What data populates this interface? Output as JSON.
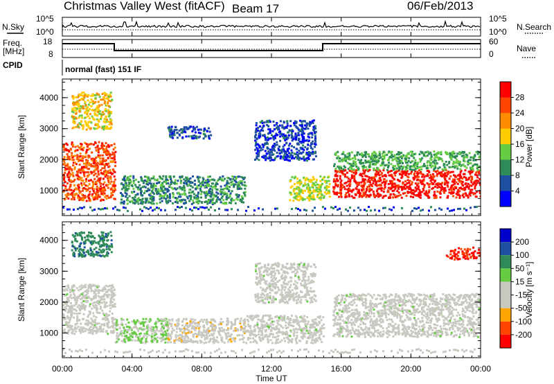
{
  "header": {
    "station": "Christmas Valley West (fitACF)",
    "beam": "Beam 17",
    "date": "06/Feb/2013"
  },
  "strip_labels": {
    "nsky": "N.Sky",
    "nsky_ticks": [
      "10^5",
      "10^0"
    ],
    "nsearch": "N.Search",
    "nsearch_ticks": [
      "10^5",
      "10^0"
    ],
    "freq_line1": "Freq.",
    "freq_line2": "[MHz]",
    "freq_ticks": [
      "18",
      "8"
    ],
    "nave": "Nave",
    "nave_ticks": [
      "60",
      "0"
    ],
    "cpid": "CPID",
    "cpid_value": "normal (fast) 151 IF"
  },
  "colors": {
    "power_scale": [
      "#0000ff",
      "#1e4fa0",
      "#2e8b57",
      "#66cc44",
      "#ffcc00",
      "#ff8c00",
      "#ff4500",
      "#ff0000"
    ],
    "velocity_scale": [
      "#ff0000",
      "#ff4500",
      "#ffa500",
      "#c8c8c0",
      "#c8c8c0",
      "#66cc44",
      "#2e8b57",
      "#1e4fa0",
      "#0000cc"
    ],
    "gray": "#c8c8c0"
  },
  "chart_data": [
    {
      "type": "heatmap",
      "name": "power",
      "ylabel": "Slant Range [km]",
      "yticks": [
        "1000",
        "2000",
        "3000",
        "4000"
      ],
      "ylim": [
        200,
        4600
      ],
      "colorbar_label": "Power [dB]",
      "colorbar_ticks": [
        "4",
        "8",
        "12",
        "16",
        "20",
        "24",
        "28"
      ],
      "colorbar_range": [
        0,
        32
      ],
      "regions": [
        {
          "t0": 0.0,
          "t1": 3.0,
          "r0": 700,
          "r1": 2600,
          "level": 26
        },
        {
          "t0": 0.5,
          "t1": 2.8,
          "r0": 3000,
          "r1": 4200,
          "level": 18
        },
        {
          "t0": 3.3,
          "t1": 10.5,
          "r0": 600,
          "r1": 1500,
          "level": 10
        },
        {
          "t0": 6.0,
          "t1": 8.5,
          "r0": 2700,
          "r1": 3100,
          "level": 6
        },
        {
          "t0": 11.0,
          "t1": 14.5,
          "r0": 2000,
          "r1": 3300,
          "level": 5
        },
        {
          "t0": 13.0,
          "t1": 15.3,
          "r0": 700,
          "r1": 1500,
          "level": 16
        },
        {
          "t0": 15.5,
          "t1": 24.0,
          "r0": 800,
          "r1": 1700,
          "level": 30
        },
        {
          "t0": 15.5,
          "t1": 24.0,
          "r0": 1700,
          "r1": 2300,
          "level": 12
        }
      ]
    },
    {
      "type": "heatmap",
      "name": "velocity",
      "ylabel": "Slant Range [km]",
      "yticks": [
        "1000",
        "2000",
        "3000",
        "4000"
      ],
      "ylim": [
        200,
        4600
      ],
      "colorbar_label": "Velocity [m s⁻¹]",
      "colorbar_ticks": [
        "200",
        "100",
        "50",
        "15",
        "-15",
        "-50",
        "-100",
        "-200"
      ],
      "colorbar_range": [
        -250,
        250
      ],
      "xlabel": "Time UT",
      "xticks": [
        "00:00",
        "04:00",
        "08:00",
        "12:00",
        "16:00",
        "20:00",
        "00:00"
      ],
      "xlim": [
        0,
        24
      ],
      "regions": [
        {
          "t0": 0.0,
          "t1": 3.0,
          "r0": 1000,
          "r1": 2600,
          "level": 0
        },
        {
          "t0": 0.5,
          "t1": 2.8,
          "r0": 3500,
          "r1": 4300,
          "level": 120
        },
        {
          "t0": 3.0,
          "t1": 6.0,
          "r0": 700,
          "r1": 1500,
          "level": 30
        },
        {
          "t0": 6.0,
          "t1": 10.5,
          "r0": 700,
          "r1": 1500,
          "level": -60
        },
        {
          "t0": 10.5,
          "t1": 15.0,
          "r0": 700,
          "r1": 1600,
          "level": 0
        },
        {
          "t0": 11.0,
          "t1": 14.5,
          "r0": 2000,
          "r1": 3300,
          "level": 0
        },
        {
          "t0": 15.5,
          "t1": 24.0,
          "r0": 900,
          "r1": 2300,
          "level": 0
        },
        {
          "t0": 22.0,
          "t1": 24.0,
          "r0": 3400,
          "r1": 3800,
          "level": -200
        }
      ]
    }
  ]
}
